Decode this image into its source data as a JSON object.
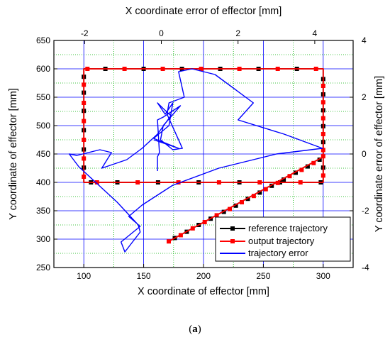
{
  "caption": {
    "open": "(",
    "letter": "a",
    "close": ")"
  },
  "chart_data": {
    "type": "line",
    "title": "",
    "axes": {
      "bottom": {
        "label": "X coordinate of effector [mm]",
        "lim": [
          75,
          325
        ],
        "ticks": [
          100,
          150,
          200,
          250,
          300
        ]
      },
      "left": {
        "label": "Y coordinate of effector [mm]",
        "lim": [
          250,
          650
        ],
        "ticks": [
          250,
          300,
          350,
          400,
          450,
          500,
          550,
          600,
          650
        ]
      },
      "top": {
        "label": "X coordinate error of effector [mm]",
        "lim": [
          -2.8,
          5.0
        ],
        "ticks": [
          -2,
          0,
          2,
          4
        ]
      },
      "right": {
        "label": "Y coordinate error of effector [mm]",
        "lim": [
          -4,
          4
        ],
        "ticks": [
          -4,
          -2,
          0,
          2,
          4
        ]
      }
    },
    "grid": true,
    "legend": {
      "position": "bottom-right"
    },
    "series": [
      {
        "name": "reference trajectory",
        "color": "#000000",
        "axes": "bottom-left",
        "marker": "square",
        "x": [
          170,
          300,
          300,
          100,
          100,
          300,
          300,
          170
        ],
        "y": [
          295,
          445,
          400,
          400,
          600,
          600,
          445,
          295
        ],
        "markers": [
          [
            176,
            302
          ],
          [
            186,
            313
          ],
          [
            196,
            325
          ],
          [
            206,
            336
          ],
          [
            217,
            348
          ],
          [
            227,
            359
          ],
          [
            237,
            371
          ],
          [
            247,
            382
          ],
          [
            257,
            394
          ],
          [
            267,
            405
          ],
          [
            277,
            417
          ],
          [
            287,
            428
          ],
          [
            297,
            440
          ],
          [
            300,
            426
          ],
          [
            298,
            400
          ],
          [
            264,
            400
          ],
          [
            230,
            400
          ],
          [
            196,
            400
          ],
          [
            162,
            400
          ],
          [
            128,
            400
          ],
          [
            106,
            400
          ],
          [
            100,
            426
          ],
          [
            100,
            458
          ],
          [
            100,
            492
          ],
          [
            100,
            526
          ],
          [
            100,
            558
          ],
          [
            100,
            586
          ],
          [
            118,
            600
          ],
          [
            150,
            600
          ],
          [
            182,
            600
          ],
          [
            214,
            600
          ],
          [
            246,
            600
          ],
          [
            278,
            600
          ],
          [
            300,
            582
          ],
          [
            300,
            555
          ],
          [
            300,
            527
          ],
          [
            300,
            499
          ],
          [
            300,
            471
          ]
        ]
      },
      {
        "name": "output trajectory",
        "color": "#ff0000",
        "axes": "bottom-left",
        "marker": "square",
        "x": [
          170,
          300,
          300,
          100,
          100,
          300,
          300,
          170
        ],
        "y": [
          295,
          445,
          400,
          400,
          600,
          600,
          445,
          295
        ],
        "markers": [
          [
            171,
            296
          ],
          [
            181,
            307
          ],
          [
            191,
            319
          ],
          [
            201,
            330
          ],
          [
            211,
            342
          ],
          [
            222,
            353
          ],
          [
            232,
            365
          ],
          [
            242,
            376
          ],
          [
            252,
            388
          ],
          [
            262,
            399
          ],
          [
            272,
            411
          ],
          [
            282,
            422
          ],
          [
            292,
            434
          ],
          [
            300,
            446
          ],
          [
            300,
            412
          ],
          [
            281,
            400
          ],
          [
            247,
            400
          ],
          [
            213,
            400
          ],
          [
            179,
            400
          ],
          [
            145,
            400
          ],
          [
            111,
            400
          ],
          [
            100,
            410
          ],
          [
            100,
            442
          ],
          [
            100,
            475
          ],
          [
            100,
            508
          ],
          [
            100,
            540
          ],
          [
            100,
            572
          ],
          [
            103,
            600
          ],
          [
            134,
            600
          ],
          [
            166,
            600
          ],
          [
            198,
            600
          ],
          [
            230,
            600
          ],
          [
            262,
            600
          ],
          [
            294,
            600
          ],
          [
            300,
            570
          ],
          [
            300,
            541
          ],
          [
            300,
            513
          ],
          [
            300,
            485
          ],
          [
            300,
            457
          ]
        ]
      },
      {
        "name": "trajectory error",
        "color": "#0000ff",
        "axes": "top-right",
        "marker": "none",
        "x": [
          -0.1,
          -0.1,
          -0.05,
          -0.1,
          0.05,
          0.5,
          0.05,
          -0.02,
          0.3,
          0.55,
          0.15,
          0.2,
          0.6,
          0.45,
          0.8,
          1.4,
          1.9,
          2.4,
          2.0,
          3.2,
          4.2,
          3.0,
          1.5,
          0.3,
          -0.5,
          -0.85,
          -0.55,
          -1.05,
          -0.95,
          -0.55,
          -0.6,
          -1.15,
          -1.75,
          -2.15,
          -2.4,
          -2.2,
          -1.6,
          -1.3,
          -1.55,
          -0.9,
          -0.5,
          -0.1,
          0.25,
          0.05,
          -0.1,
          0.1,
          0.3,
          0.2,
          -0.2,
          0.45,
          -0.2
        ],
        "y": [
          -0.6,
          -0.1,
          0.05,
          1.2,
          1.3,
          1.7,
          1.0,
          0.5,
          0.15,
          0.2,
          1.4,
          1.8,
          2.0,
          2.9,
          3.0,
          2.8,
          2.3,
          1.8,
          1.2,
          0.7,
          0.2,
          0.0,
          -0.5,
          -1.1,
          -1.8,
          -2.2,
          -2.55,
          -3.1,
          -3.45,
          -2.75,
          -2.5,
          -1.7,
          -0.95,
          -0.45,
          0.0,
          -0.05,
          0.15,
          0.05,
          -0.5,
          -0.2,
          0.2,
          0.7,
          1.35,
          1.6,
          1.8,
          1.4,
          1.8,
          1.0,
          0.55,
          0.2,
          0.5
        ]
      }
    ]
  }
}
